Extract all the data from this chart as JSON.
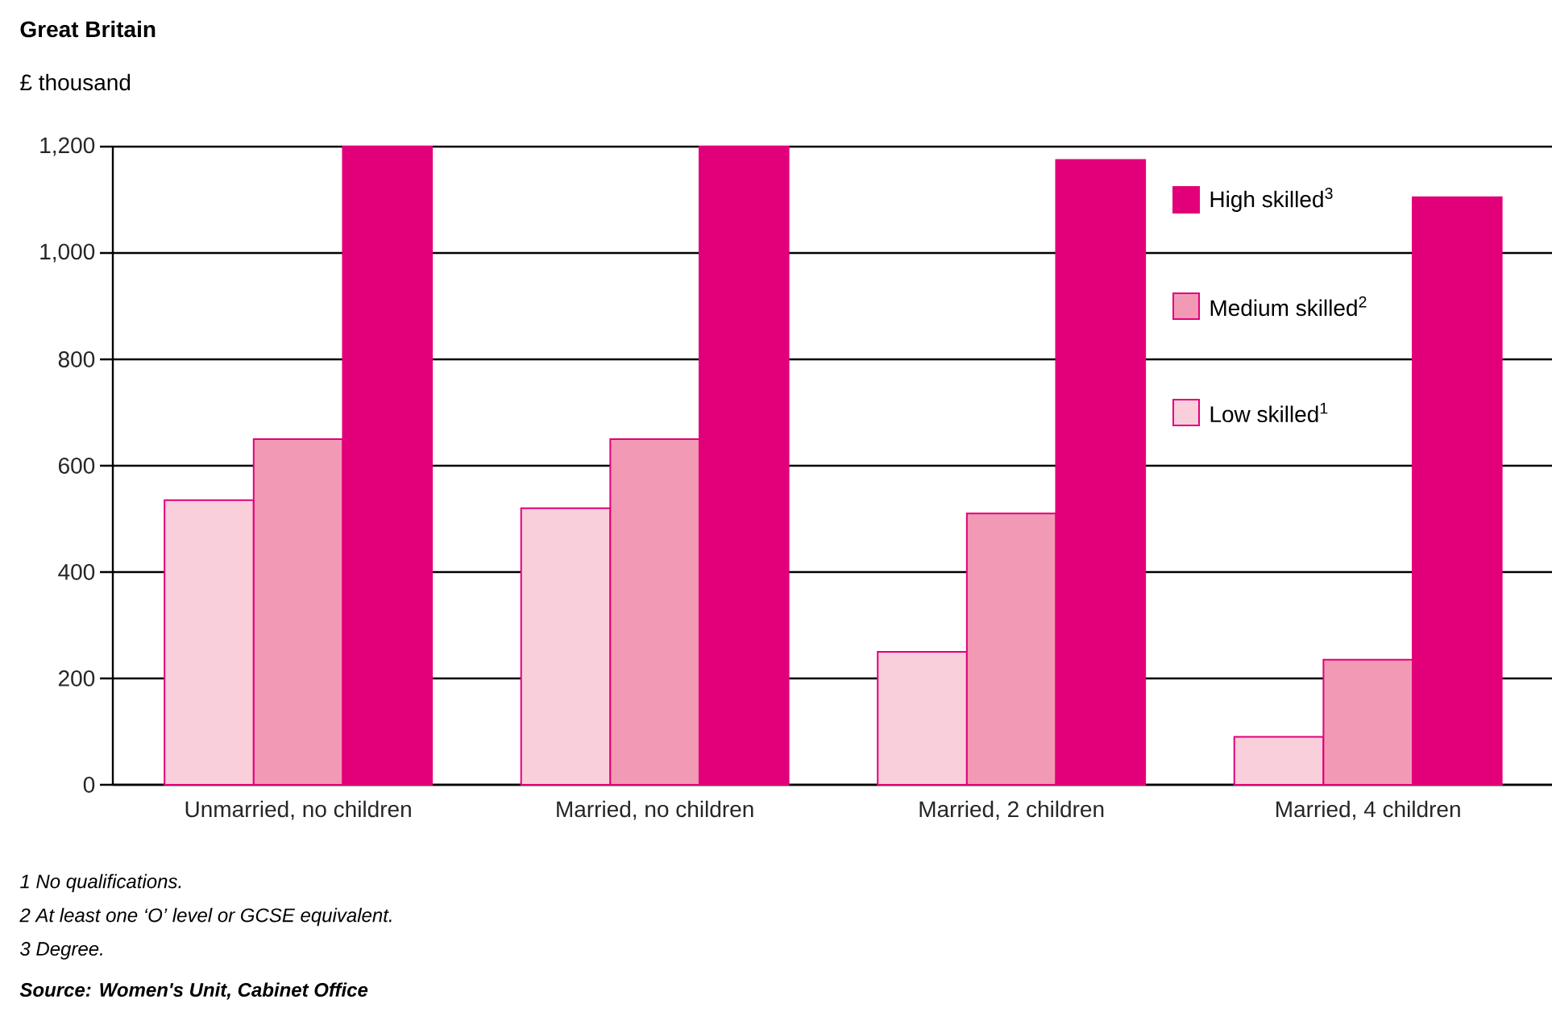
{
  "chart_data": {
    "type": "bar",
    "title": "Great Britain",
    "ylabel": "£ thousand",
    "categories": [
      "Unmarried, no children",
      "Married, no children",
      "Married, 2 children",
      "Married, 4 children"
    ],
    "series": [
      {
        "name": "Low skilled$^{1}$",
        "color": "#f9cfdc",
        "values": [
          535,
          520,
          250,
          90
        ]
      },
      {
        "name": "Medium skilled$^{2}$",
        "color": "#f29ab5",
        "values": [
          650,
          650,
          510,
          235
        ]
      },
      {
        "name": "High skilled$^{3}$",
        "color": "#e2007a",
        "values": [
          1200,
          1200,
          1175,
          1105
        ]
      }
    ],
    "ylim": [
      0,
      1200
    ],
    "yticks": [
      0,
      200,
      400,
      600,
      800,
      {
        "value": 1000,
        "label": "1,000"
      },
      {
        "value": 1200,
        "label": "1,200"
      }
    ],
    "grid": "y",
    "legend": "top right",
    "annotations": [
      "1 No qualifications.",
      "2 At least one ‘O’ level or GCSE equivalent.",
      "3 Degree.",
      "Source: Women's Unit, Cabinet Office"
    ]
  }
}
